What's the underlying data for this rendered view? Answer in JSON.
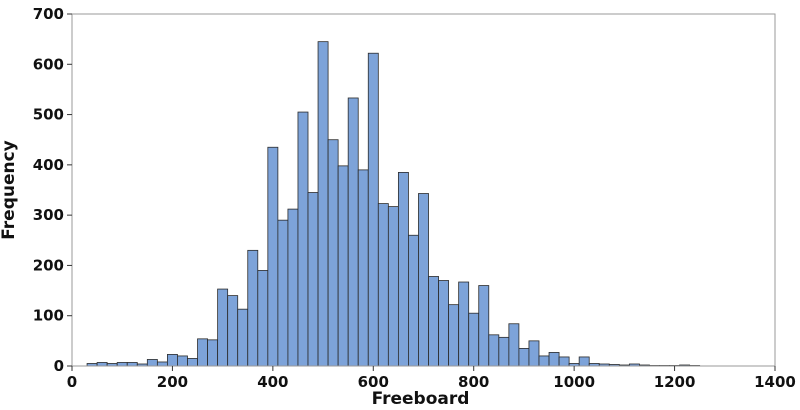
{
  "chart_data": {
    "type": "bar",
    "xlabel": "Freeboard",
    "ylabel": "Frequency",
    "xlim": [
      0,
      1400
    ],
    "ylim": [
      0,
      700
    ],
    "x_ticks": [
      0,
      200,
      400,
      600,
      800,
      1000,
      1200,
      1400
    ],
    "y_ticks": [
      0,
      100,
      200,
      300,
      400,
      500,
      600,
      700
    ],
    "grid": false,
    "bar_color": "#7da3d9",
    "bar_edge_color": "#2b2b2b",
    "series": [
      {
        "bin_width": 20,
        "bin_starts": [
          30,
          50,
          70,
          90,
          110,
          130,
          150,
          170,
          190,
          210,
          230,
          250,
          270,
          290,
          310,
          330,
          350,
          370,
          390,
          410,
          430,
          450,
          470,
          490,
          510,
          530,
          550,
          570,
          590,
          610,
          630,
          650,
          670,
          690,
          710,
          730,
          750,
          770,
          790,
          810,
          830,
          850,
          870,
          890,
          910,
          930,
          950,
          970,
          990,
          1010,
          1030,
          1050,
          1070,
          1090,
          1110,
          1130,
          1150,
          1170,
          1190,
          1210,
          1230
        ],
        "values": [
          5,
          7,
          5,
          7,
          7,
          4,
          13,
          8,
          23,
          20,
          15,
          54,
          52,
          153,
          140,
          113,
          230,
          190,
          435,
          290,
          312,
          505,
          345,
          645,
          450,
          398,
          533,
          390,
          622,
          323,
          317,
          385,
          260,
          343,
          178,
          170,
          122,
          167,
          105,
          160,
          62,
          57,
          84,
          35,
          50,
          20,
          27,
          18,
          5,
          18,
          5,
          4,
          3,
          2,
          4,
          2,
          1,
          1,
          1,
          2,
          1
        ]
      }
    ]
  }
}
